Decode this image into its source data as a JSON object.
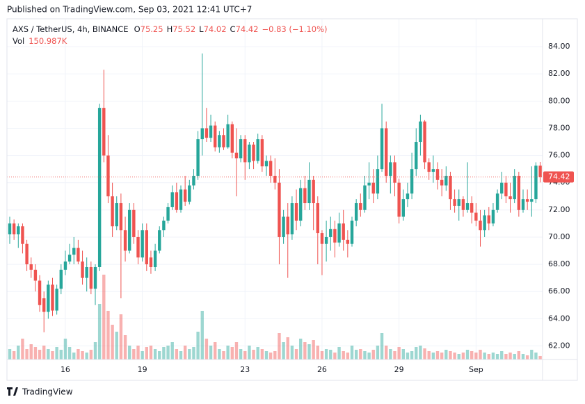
{
  "header": "Published on TradingView.com, Sep 03, 2021 12:41 UTC+7",
  "footer": "TradingView",
  "chart_data": {
    "type": "candlestick",
    "symbol": "AXS / TetherUS, 4h, BINANCE",
    "legend_labels": {
      "open": "O",
      "high": "H",
      "low": "L",
      "close": "C"
    },
    "change_label": "−0.83 (−1.10%)",
    "volume_title": "Vol",
    "volume_label": "150.987K",
    "up_color": "#26a69a",
    "down_color": "#ef5350",
    "categories": [
      null,
      null,
      null,
      null,
      null,
      null,
      null,
      null,
      null,
      null,
      null,
      null,
      null,
      "16",
      null,
      null,
      null,
      null,
      null,
      null,
      null,
      null,
      null,
      null,
      null,
      null,
      null,
      null,
      null,
      null,
      null,
      "19",
      null,
      null,
      null,
      null,
      null,
      null,
      null,
      null,
      null,
      null,
      null,
      null,
      null,
      null,
      null,
      null,
      null,
      null,
      null,
      null,
      null,
      null,
      null,
      "23",
      null,
      null,
      null,
      null,
      null,
      null,
      null,
      null,
      null,
      null,
      null,
      null,
      null,
      null,
      null,
      null,
      null,
      "26",
      null,
      null,
      null,
      null,
      null,
      null,
      null,
      null,
      null,
      null,
      null,
      null,
      null,
      null,
      null,
      null,
      null,
      "29",
      null,
      null,
      null,
      null,
      null,
      null,
      null,
      null,
      null,
      null,
      null,
      null,
      null,
      null,
      null,
      null,
      null,
      "Sep",
      null,
      null,
      null,
      null,
      null,
      null,
      null,
      null,
      null,
      null,
      null,
      null,
      null,
      null,
      null
    ],
    "open": [
      70.2,
      71.0,
      70.2,
      70.8,
      69.5,
      68.0,
      67.6,
      66.8,
      65.5,
      64.5,
      66.5,
      64.6,
      66.2,
      67.6,
      68.2,
      68.7,
      69.2,
      68.2,
      67.0,
      67.8,
      66.2,
      67.8,
      79.5,
      76.0,
      73.0,
      70.8,
      72.5,
      70.5,
      69.0,
      72.0,
      70.0,
      68.5,
      70.5,
      68.5,
      67.8,
      69.0,
      70.5,
      71.2,
      72.2,
      73.3,
      72.0,
      73.5,
      72.6,
      73.8,
      74.5,
      77.2,
      78.0,
      77.3,
      78.2,
      76.6,
      77.5,
      76.6,
      78.3,
      76.2,
      75.8,
      77.2,
      75.5,
      76.8,
      75.6,
      77.2,
      75.2,
      75.6,
      74.5,
      74.0,
      70.0,
      71.5,
      70.2,
      72.5,
      71.2,
      73.6,
      72.5,
      74.2,
      72.5,
      70.3,
      69.5,
      70.0,
      70.6,
      69.6,
      71.0,
      69.8,
      69.5,
      71.2,
      72.5,
      72.0,
      73.8,
      74.0,
      73.2,
      75.0,
      78.0,
      74.5,
      75.5,
      74.0,
      71.5,
      72.8,
      73.2,
      75.0,
      77.0,
      78.5,
      75.5,
      74.8,
      75.0,
      74.2,
      73.8,
      74.5,
      72.8,
      72.3,
      72.8,
      72.0,
      72.5,
      71.8,
      71.2,
      70.5,
      71.6,
      71.0,
      72.0,
      73.2,
      74.0,
      73.0,
      72.8,
      74.5,
      72.0,
      72.8,
      72.6,
      72.8,
      75.25
    ],
    "high": [
      71.5,
      71.3,
      71.0,
      71.0,
      69.8,
      68.5,
      68.0,
      67.2,
      66.0,
      66.8,
      67.0,
      66.5,
      68.0,
      69.0,
      69.5,
      70.0,
      69.8,
      69.0,
      68.5,
      68.2,
      68.0,
      79.8,
      82.3,
      77.5,
      74.0,
      73.0,
      73.2,
      71.5,
      72.5,
      72.5,
      70.5,
      71.0,
      71.0,
      69.0,
      69.5,
      70.8,
      71.5,
      72.5,
      73.8,
      74.0,
      73.8,
      74.5,
      74.2,
      75.0,
      77.8,
      83.5,
      79.5,
      79.0,
      78.5,
      77.8,
      78.0,
      79.0,
      78.5,
      78.0,
      77.5,
      77.5,
      77.0,
      77.0,
      77.6,
      77.5,
      76.0,
      76.0,
      75.8,
      75.0,
      72.0,
      72.5,
      73.0,
      73.5,
      74.2,
      74.5,
      75.5,
      74.5,
      73.0,
      70.5,
      71.2,
      71.5,
      71.2,
      71.8,
      72.0,
      70.5,
      71.5,
      72.8,
      73.2,
      74.5,
      75.5,
      75.0,
      76.0,
      79.8,
      78.5,
      76.0,
      76.0,
      74.3,
      73.5,
      74.0,
      76.2,
      78.0,
      79.0,
      78.6,
      75.8,
      76.0,
      75.5,
      75.0,
      75.2,
      74.8,
      73.5,
      73.5,
      73.0,
      75.5,
      73.0,
      72.5,
      72.0,
      72.0,
      72.2,
      72.5,
      73.5,
      74.8,
      74.5,
      74.0,
      75.0,
      74.8,
      73.5,
      73.5,
      75.2,
      75.5,
      75.52
    ],
    "low": [
      69.5,
      69.8,
      69.2,
      68.8,
      67.5,
      67.0,
      66.0,
      64.5,
      63.0,
      64.0,
      64.2,
      64.3,
      65.8,
      67.2,
      68.0,
      68.0,
      68.0,
      66.5,
      66.0,
      65.8,
      65.0,
      67.5,
      75.5,
      72.5,
      70.0,
      70.5,
      65.5,
      68.2,
      68.8,
      69.5,
      68.0,
      68.2,
      67.5,
      67.3,
      67.5,
      68.8,
      70.0,
      71.0,
      72.0,
      71.8,
      71.8,
      72.3,
      72.4,
      73.5,
      74.2,
      76.0,
      77.0,
      77.0,
      76.3,
      76.2,
      76.4,
      76.5,
      75.8,
      73.0,
      75.5,
      74.2,
      75.0,
      75.0,
      75.4,
      74.8,
      74.5,
      74.0,
      73.5,
      68.0,
      69.5,
      67.0,
      69.8,
      70.5,
      70.8,
      72.0,
      72.0,
      70.5,
      68.0,
      67.2,
      68.2,
      69.0,
      68.5,
      69.3,
      69.0,
      68.5,
      69.3,
      70.8,
      71.5,
      71.8,
      72.8,
      72.5,
      72.8,
      74.8,
      74.0,
      73.2,
      73.0,
      71.0,
      71.2,
      72.2,
      72.8,
      74.5,
      76.0,
      75.0,
      74.2,
      74.0,
      73.5,
      73.0,
      73.4,
      72.0,
      71.8,
      71.2,
      71.5,
      71.8,
      71.0,
      70.8,
      69.3,
      70.0,
      70.5,
      70.8,
      71.8,
      72.8,
      72.5,
      71.8,
      72.5,
      71.5,
      71.8,
      72.0,
      71.5,
      72.5,
      74.02
    ],
    "close": [
      71.0,
      70.2,
      70.8,
      69.5,
      68.0,
      67.6,
      66.8,
      65.0,
      64.5,
      66.5,
      64.6,
      66.2,
      67.6,
      68.2,
      68.7,
      69.2,
      68.2,
      67.0,
      67.8,
      66.2,
      67.8,
      79.5,
      76.0,
      73.0,
      70.8,
      72.5,
      70.5,
      69.0,
      72.0,
      70.0,
      68.5,
      70.5,
      68.0,
      67.8,
      69.0,
      70.5,
      71.2,
      72.2,
      73.3,
      72.0,
      73.5,
      72.6,
      73.8,
      74.5,
      77.2,
      78.0,
      77.3,
      78.2,
      76.6,
      77.5,
      76.6,
      78.3,
      76.2,
      75.8,
      77.2,
      75.5,
      76.8,
      75.6,
      77.2,
      75.2,
      75.6,
      74.5,
      74.0,
      70.0,
      71.5,
      70.2,
      72.5,
      71.2,
      73.6,
      72.5,
      74.2,
      72.5,
      70.3,
      69.5,
      70.0,
      70.6,
      69.6,
      71.0,
      69.8,
      69.5,
      71.2,
      72.5,
      72.0,
      73.8,
      74.0,
      73.2,
      75.0,
      78.0,
      74.5,
      75.5,
      74.0,
      71.5,
      72.8,
      73.2,
      75.0,
      77.0,
      78.5,
      75.5,
      74.8,
      75.0,
      74.2,
      73.8,
      74.5,
      72.8,
      72.3,
      72.8,
      72.0,
      72.5,
      71.8,
      71.2,
      70.5,
      71.6,
      71.0,
      72.0,
      73.2,
      74.0,
      73.0,
      72.8,
      74.5,
      72.0,
      72.8,
      72.6,
      72.8,
      75.25,
      74.42
    ],
    "volume": [
      450000,
      360000,
      600000,
      900000,
      450000,
      660000,
      540000,
      420000,
      600000,
      450000,
      360000,
      540000,
      420000,
      900000,
      540000,
      300000,
      450000,
      360000,
      300000,
      420000,
      750000,
      2400000,
      3660000,
      2100000,
      1500000,
      1200000,
      1950000,
      1050000,
      600000,
      450000,
      600000,
      360000,
      540000,
      600000,
      450000,
      360000,
      540000,
      600000,
      750000,
      450000,
      360000,
      600000,
      450000,
      540000,
      1200000,
      2100000,
      900000,
      600000,
      750000,
      450000,
      360000,
      600000,
      540000,
      750000,
      450000,
      360000,
      600000,
      420000,
      540000,
      450000,
      360000,
      300000,
      360000,
      1140000,
      750000,
      960000,
      600000,
      450000,
      900000,
      750000,
      660000,
      840000,
      600000,
      360000,
      450000,
      420000,
      300000,
      540000,
      360000,
      300000,
      600000,
      420000,
      450000,
      360000,
      300000,
      420000,
      600000,
      1140000,
      600000,
      450000,
      360000,
      540000,
      450000,
      300000,
      360000,
      540000,
      600000,
      480000,
      360000,
      300000,
      360000,
      300000,
      420000,
      360000,
      300000,
      240000,
      300000,
      420000,
      360000,
      300000,
      420000,
      300000,
      240000,
      300000,
      240000,
      360000,
      240000,
      300000,
      240000,
      360000,
      240000,
      180000,
      420000,
      300000,
      150987
    ],
    "ylim": [
      61.0,
      86.05
    ],
    "yticks": [
      {
        "value": 62,
        "label": "62.00"
      },
      {
        "value": 64,
        "label": "64.00"
      },
      {
        "value": 66,
        "label": "66.00"
      },
      {
        "value": 68,
        "label": "68.00"
      },
      {
        "value": 70,
        "label": "70.00"
      },
      {
        "value": 72,
        "label": "72.00"
      },
      {
        "value": 74,
        "label": "74.00"
      },
      {
        "value": 76,
        "label": "76.00"
      },
      {
        "value": 78,
        "label": "78.00"
      },
      {
        "value": 80,
        "label": "80.00"
      },
      {
        "value": 82,
        "label": "82.00"
      },
      {
        "value": 84,
        "label": "84.00"
      }
    ],
    "grid": true
  }
}
